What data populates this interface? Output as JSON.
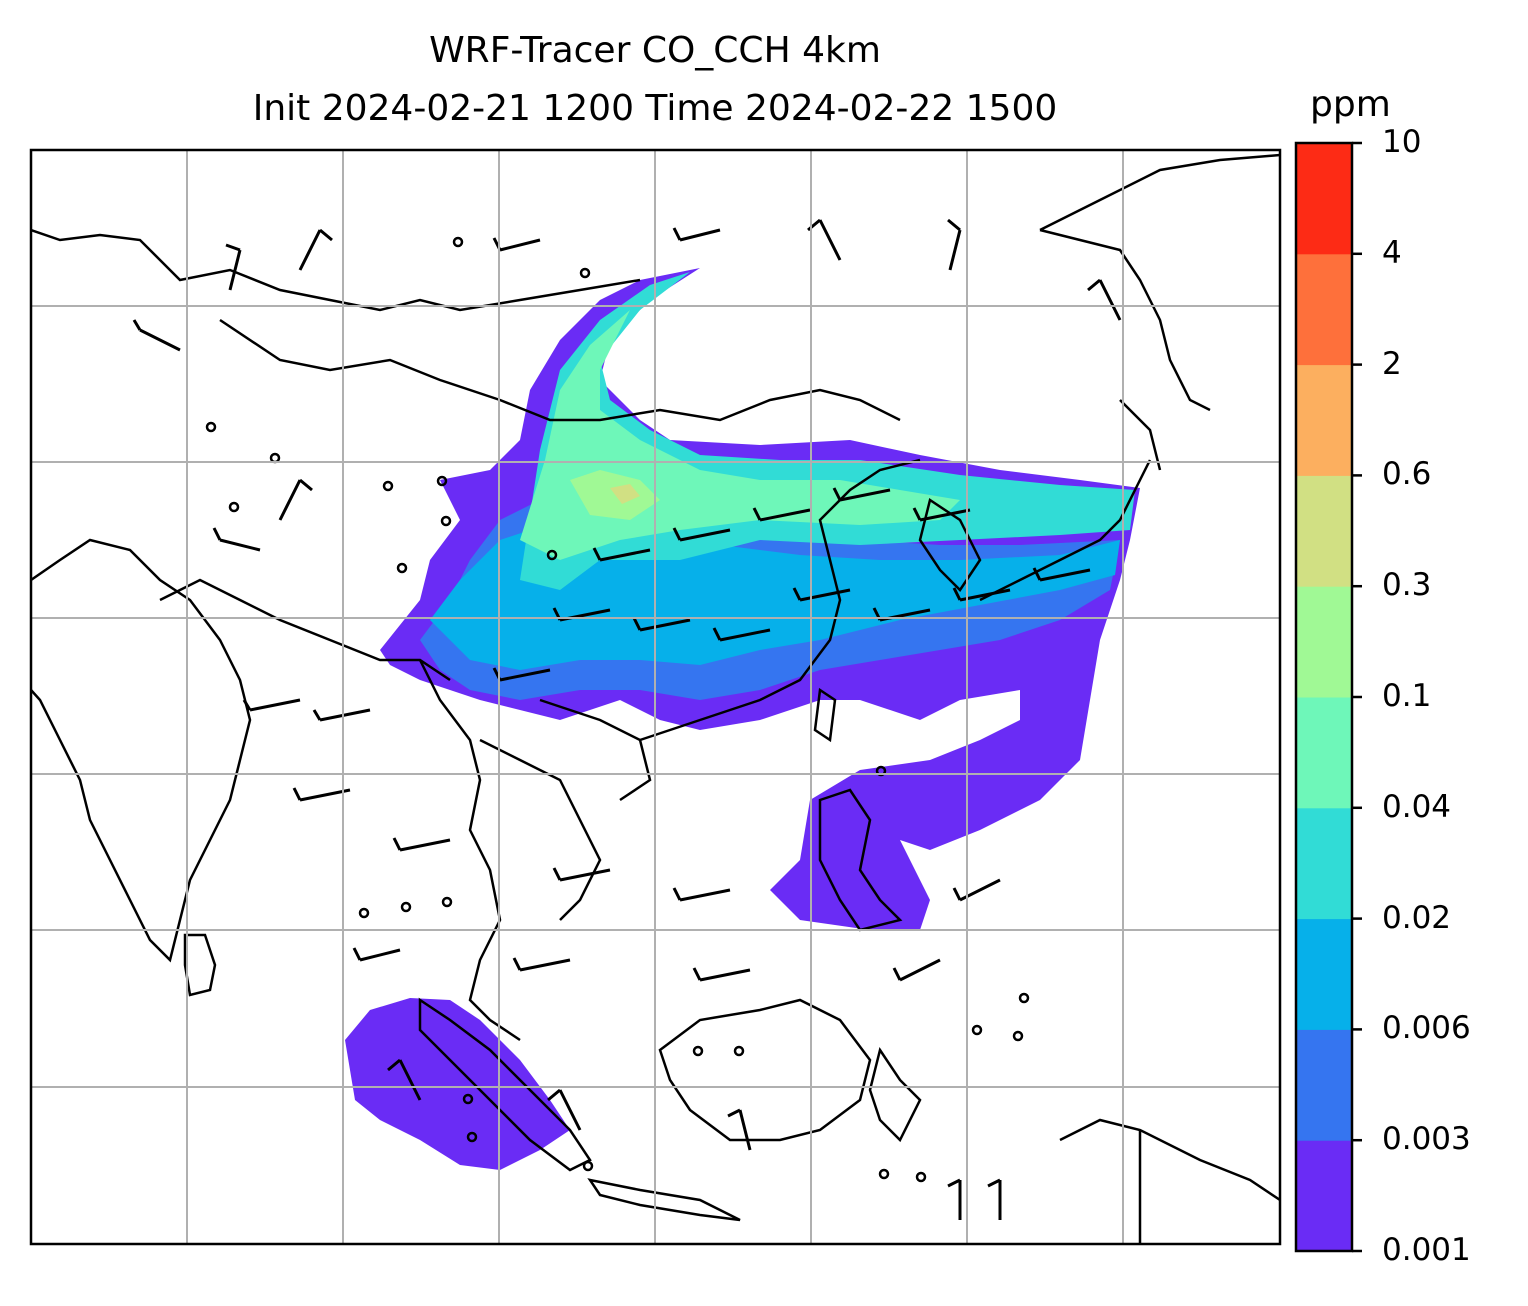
{
  "title": {
    "line1": "WRF-Tracer CO_CCH 4km",
    "line2": "Init 2024-02-21 1200 Time 2024-02-22 1500"
  },
  "colorbar": {
    "unit": "ppm",
    "levels": [
      "0.001",
      "0.003",
      "0.006",
      "0.02",
      "0.04",
      "0.1",
      "0.3",
      "0.6",
      "2",
      "4",
      "10"
    ],
    "colors": [
      "#6a2cf5",
      "#3575f0",
      "#06b0ea",
      "#31dcd6",
      "#6ef7b9",
      "#a0f995",
      "#d1e083",
      "#fcaf5f",
      "#fe703b",
      "#fd2b15"
    ]
  },
  "map": {
    "gridlines": true,
    "plume_colors": {
      "low": "#6a2cf5",
      "mid": "#3575f0",
      "cyan": "#06b0ea",
      "teal": "#31dcd6",
      "green": "#6ef7b9",
      "light": "#a0f995",
      "yellow": "#d1e083"
    }
  }
}
